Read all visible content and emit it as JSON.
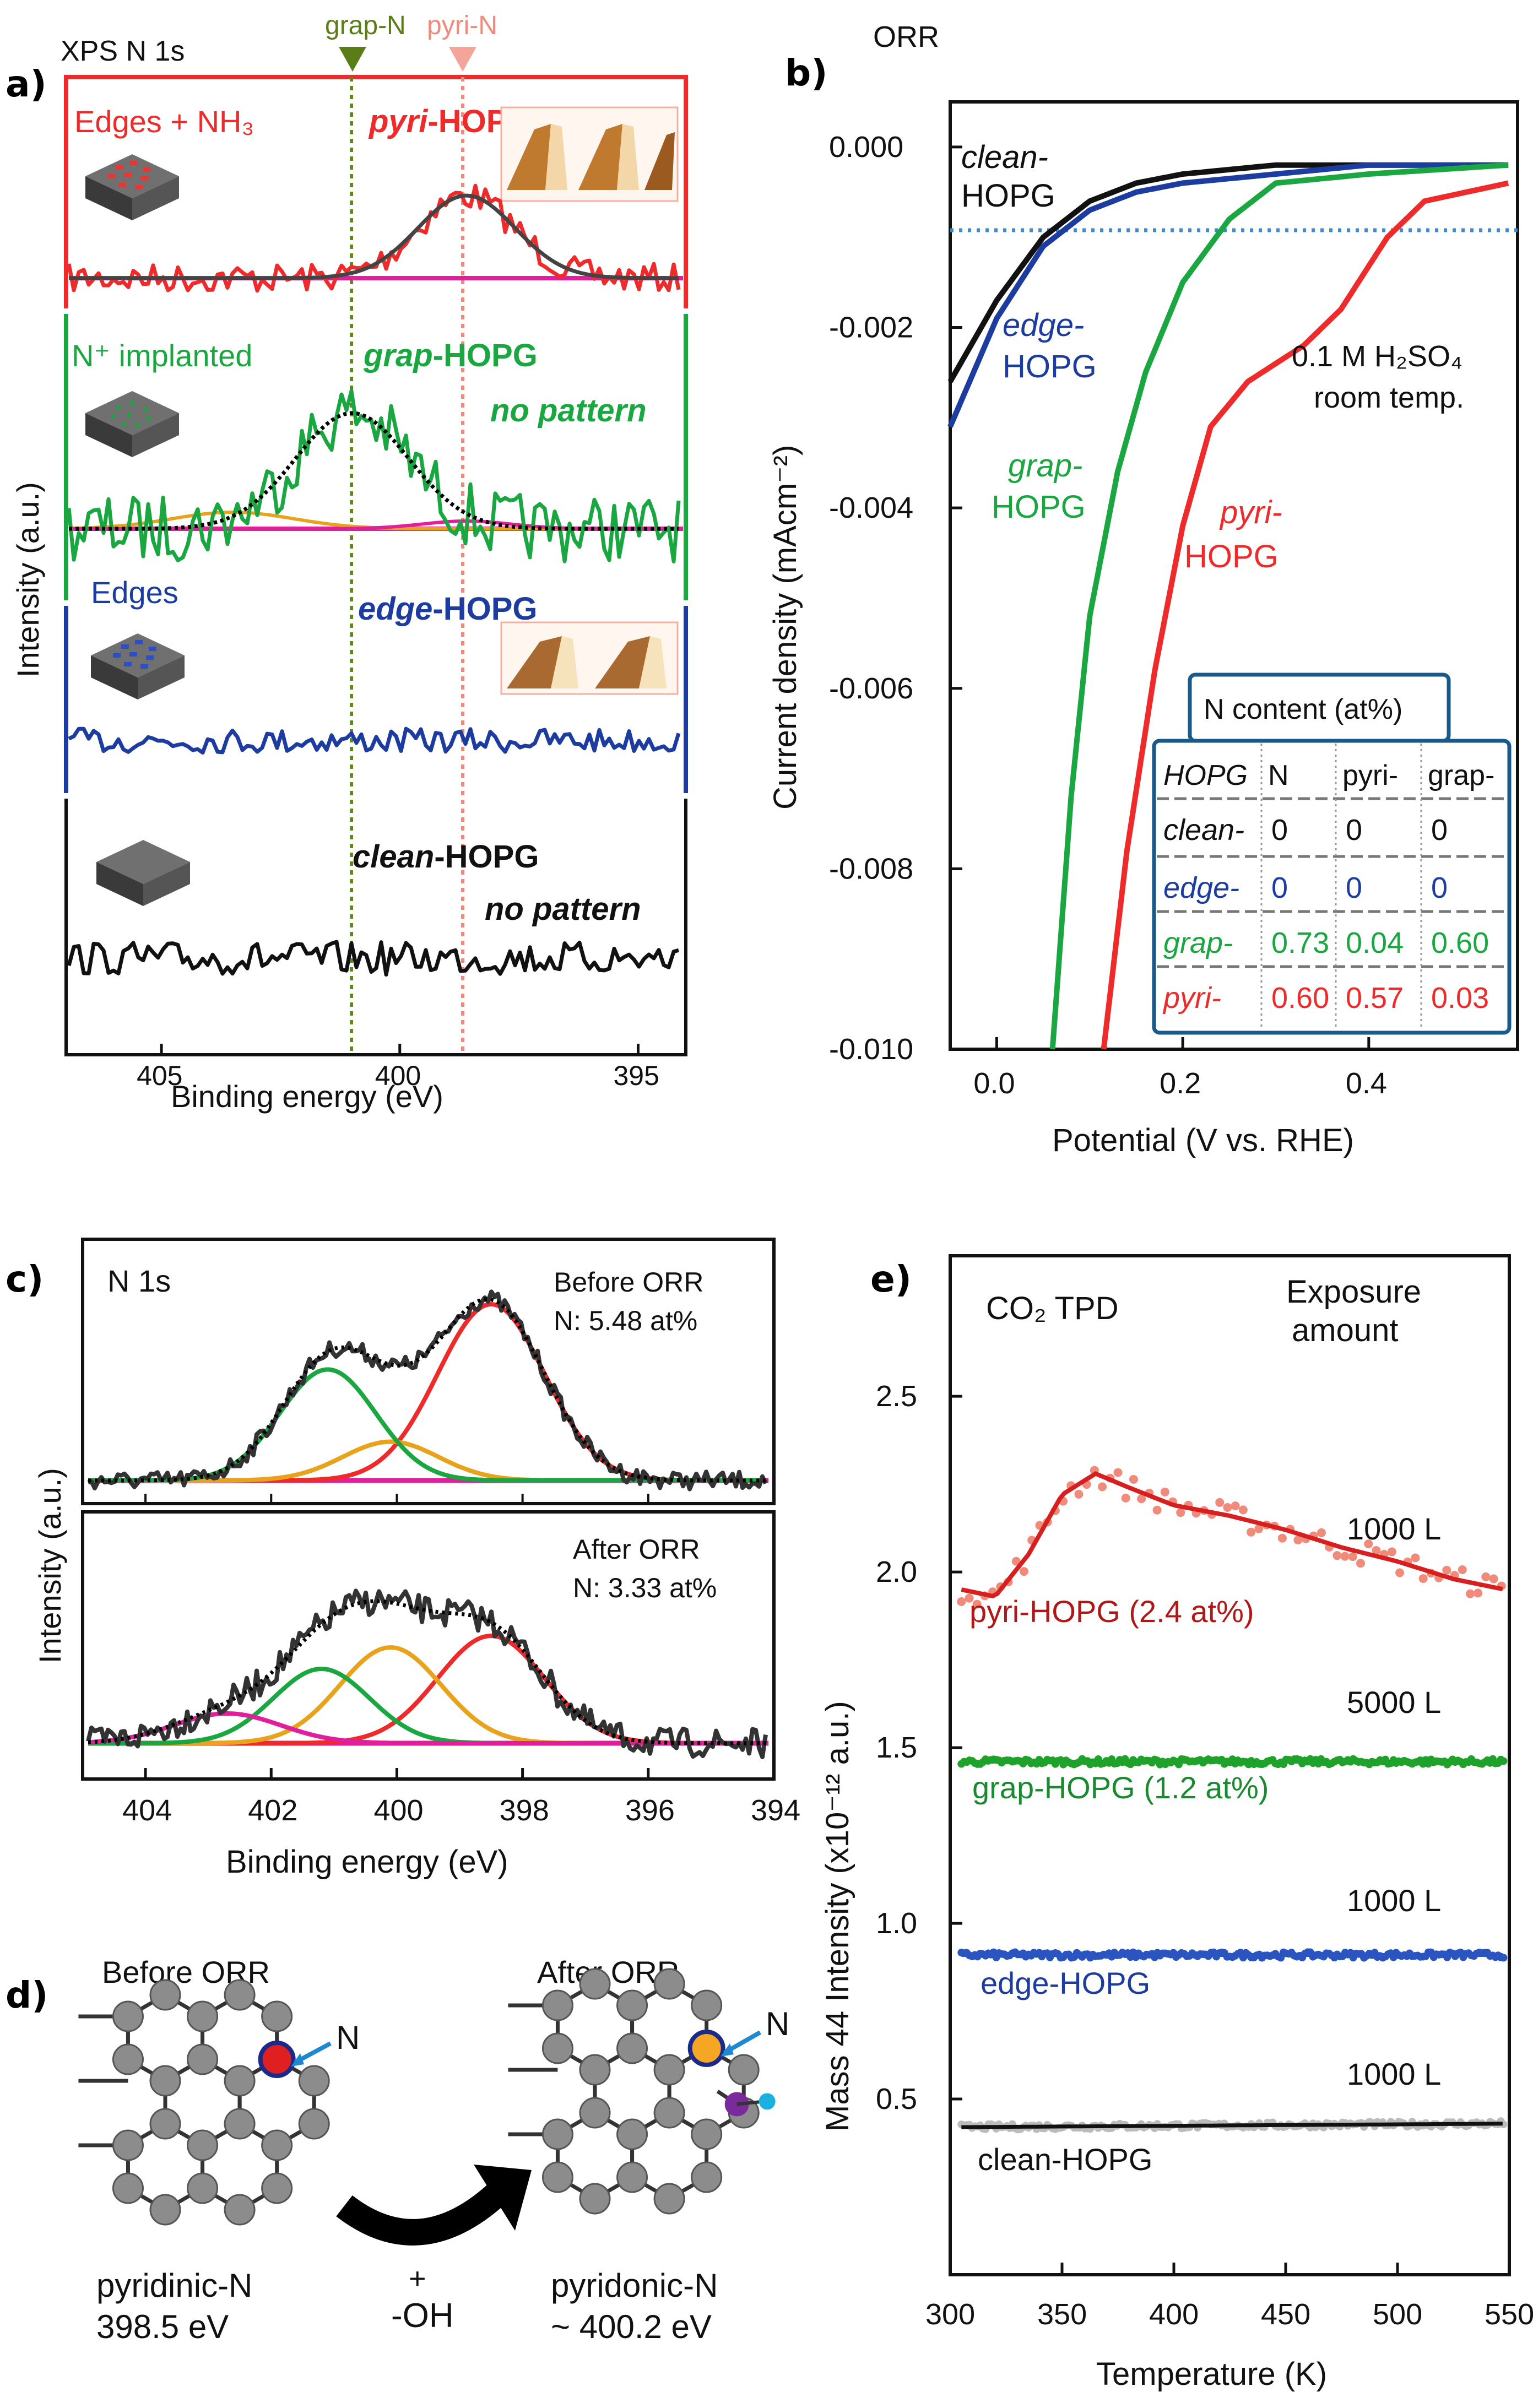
{
  "panels": {
    "a": "a)",
    "b": "b)",
    "c": "c)",
    "d": "d)",
    "e": "e)"
  },
  "colors": {
    "red": "#ee2a2a",
    "green": "#1aa640",
    "blue": "#1c3ca0",
    "black": "#111111",
    "magenta": "#e0209a",
    "orange": "#e9a21b",
    "darkgreen": "#5b7d18",
    "salmon": "#f08a7a"
  },
  "panel_a": {
    "header": "XPS N 1s",
    "marker_graph": "grap-N",
    "marker_pyri": "pyri-N",
    "ylabel": "Intensity (a.u.)",
    "xlabel": "Binding energy (eV)",
    "xticks": [
      "405",
      "400",
      "395"
    ],
    "tracks": [
      {
        "left": "Edges + NH₃",
        "mid_prefix": "pyri",
        "mid_suffix": "-HOPG",
        "note": ""
      },
      {
        "left": "N⁺ implanted",
        "mid_prefix": "grap",
        "mid_suffix": "-HOPG",
        "note": "no pattern"
      },
      {
        "left": "Edges",
        "mid_prefix": "edge",
        "mid_suffix": "-HOPG",
        "note": ""
      },
      {
        "left": "",
        "mid_prefix": "clean",
        "mid_suffix": "-HOPG",
        "note": "no pattern"
      }
    ]
  },
  "panel_b": {
    "header": "ORR",
    "ylabel": "Current density (mAcm⁻²)",
    "xlabel": "Potential (V vs. RHE)",
    "conditions_line1": "0.1 M H₂SO₄",
    "conditions_line2": "room temp.",
    "curve_labels": [
      {
        "l1": "clean-",
        "l2": "HOPG"
      },
      {
        "l1": "edge-",
        "l2": "HOPG"
      },
      {
        "l1": "grap-",
        "l2": "HOPG"
      },
      {
        "l1": "pyri-",
        "l2": "HOPG"
      }
    ],
    "table": {
      "title": "N content (at%)",
      "headers": [
        "HOPG",
        "N",
        "pyri-",
        "grap-"
      ],
      "rows": [
        [
          "clean-",
          "0",
          "0",
          "0"
        ],
        [
          "edge-",
          "0",
          "0",
          "0"
        ],
        [
          "grap-",
          "0.73",
          "0.04",
          "0.60"
        ],
        [
          "pyri-",
          "0.60",
          "0.57",
          "0.03"
        ]
      ]
    }
  },
  "panel_c": {
    "header": "N 1s",
    "ylabel": "Intensity (a.u.)",
    "xlabel": "Binding energy (eV)",
    "before_l1": "Before ORR",
    "before_l2": "N: 5.48 at%",
    "after_l1": "After ORR",
    "after_l2": "N: 3.33 at%"
  },
  "panel_d": {
    "before": "Before ORR",
    "after": "After ORR",
    "n_label": "N",
    "plus": "+",
    "oh": "-OH",
    "left_name": "pyridinic-N",
    "left_energy": "398.5 eV",
    "right_name": "pyridonic-N",
    "right_energy": "~ 400.2 eV"
  },
  "panel_e": {
    "header": "CO₂ TPD",
    "exposure_l1": "Exposure",
    "exposure_l2": "amount",
    "ylabel": "Mass 44 Intensity (x10⁻¹² a.u.)",
    "xlabel": "Temperature (K)",
    "series": [
      {
        "name": "pyri-HOPG (2.4 at%)",
        "exposure": "1000 L"
      },
      {
        "name": "grap-HOPG (1.2 at%)",
        "exposure": "5000 L"
      },
      {
        "name": "edge-HOPG",
        "exposure": "1000 L"
      },
      {
        "name": "clean-HOPG",
        "exposure": "1000 L"
      }
    ]
  },
  "chart_data": [
    {
      "type": "line",
      "panel": "a",
      "title": "XPS N 1s",
      "xlabel": "Binding energy (eV)",
      "ylabel": "Intensity (a.u.)",
      "xlim": [
        407,
        394
      ],
      "xticks": [
        405,
        400,
        395
      ],
      "reference_lines": [
        {
          "name": "grap-N",
          "x": 401.1
        },
        {
          "name": "pyri-N",
          "x": 398.6
        }
      ],
      "series": [
        {
          "name": "pyri-HOPG",
          "peak_center": 398.6,
          "peak_fwhm": 2.4
        },
        {
          "name": "grap-HOPG",
          "peak_center": 401.0,
          "peak_fwhm": 2.8
        },
        {
          "name": "edge-HOPG"
        },
        {
          "name": "clean-HOPG"
        }
      ]
    },
    {
      "type": "line",
      "panel": "b",
      "title": "ORR",
      "xlabel": "Potential (V vs. RHE)",
      "ylabel": "Current density (mAcm-2)",
      "xlim": [
        -0.05,
        0.56
      ],
      "ylim": [
        -0.01,
        0.0005
      ],
      "xticks": [
        0.0,
        0.2,
        0.4
      ],
      "yticks": [
        0.0,
        -0.002,
        -0.004,
        -0.006,
        -0.008,
        -0.01
      ],
      "reference_lines": [
        {
          "y": -0.001
        }
      ],
      "series": [
        {
          "name": "clean-HOPG",
          "x": [
            -0.05,
            0.0,
            0.05,
            0.1,
            0.15,
            0.2,
            0.3,
            0.4,
            0.55
          ],
          "y": [
            -0.0026,
            -0.0017,
            -0.001,
            -0.0006,
            -0.0004,
            -0.0003,
            -0.0002,
            -0.0002,
            -0.0002
          ]
        },
        {
          "name": "edge-HOPG",
          "x": [
            -0.05,
            0.0,
            0.05,
            0.1,
            0.15,
            0.2,
            0.3,
            0.4,
            0.55
          ],
          "y": [
            -0.0031,
            -0.0019,
            -0.0011,
            -0.0007,
            -0.0005,
            -0.0004,
            -0.0003,
            -0.0002,
            -0.0002
          ]
        },
        {
          "name": "grap-HOPG",
          "x": [
            0.06,
            0.08,
            0.1,
            0.13,
            0.16,
            0.2,
            0.25,
            0.3,
            0.4,
            0.55
          ],
          "y": [
            -0.01,
            -0.0072,
            -0.0052,
            -0.0036,
            -0.0025,
            -0.0015,
            -0.0008,
            -0.0004,
            -0.0003,
            -0.0002
          ]
        },
        {
          "name": "pyri-HOPG",
          "x": [
            0.115,
            0.14,
            0.17,
            0.2,
            0.23,
            0.27,
            0.3,
            0.33,
            0.37,
            0.42,
            0.46,
            0.55
          ],
          "y": [
            -0.01,
            -0.0078,
            -0.0058,
            -0.0042,
            -0.0031,
            -0.0026,
            -0.0024,
            -0.0022,
            -0.0018,
            -0.001,
            -0.0006,
            -0.0004
          ]
        }
      ]
    },
    {
      "type": "line",
      "panel": "c",
      "xlabel": "Binding energy (eV)",
      "ylabel": "Intensity (a.u.)",
      "xlim": [
        405,
        394
      ],
      "xticks": [
        404,
        402,
        400,
        398,
        396,
        394
      ],
      "series": [
        {
          "name": "Before ORR",
          "components": [
            {
              "center": 398.5,
              "height": 1.0,
              "fwhm": 2.0
            },
            {
              "center": 400.1,
              "height": 0.22,
              "fwhm": 1.8
            },
            {
              "center": 401.1,
              "height": 0.63,
              "fwhm": 1.8
            }
          ]
        },
        {
          "name": "After ORR",
          "components": [
            {
              "center": 398.5,
              "height": 0.65,
              "fwhm": 2.0
            },
            {
              "center": 400.1,
              "height": 0.58,
              "fwhm": 1.9
            },
            {
              "center": 401.2,
              "height": 0.45,
              "fwhm": 1.8
            },
            {
              "center": 402.7,
              "height": 0.18,
              "fwhm": 2.0
            }
          ]
        }
      ]
    },
    {
      "type": "scatter",
      "panel": "e",
      "title": "CO2 TPD",
      "xlabel": "Temperature (K)",
      "ylabel": "Mass 44 Intensity (x10-12 a.u.)",
      "xlim": [
        300,
        550
      ],
      "ylim": [
        0.0,
        2.9
      ],
      "xticks": [
        300,
        350,
        400,
        450,
        500,
        550
      ],
      "yticks": [
        0.5,
        1.0,
        1.5,
        2.0,
        2.5
      ],
      "series": [
        {
          "name": "pyri-HOPG (2.4 at%)",
          "x": [
            305,
            320,
            335,
            350,
            365,
            380,
            400,
            425,
            450,
            475,
            500,
            525,
            548
          ],
          "y": [
            1.95,
            1.93,
            2.05,
            2.22,
            2.28,
            2.24,
            2.19,
            2.16,
            2.12,
            2.07,
            2.03,
            1.98,
            1.95
          ]
        },
        {
          "name": "grap-HOPG (1.2 at%)",
          "x": [
            305,
            550
          ],
          "y": [
            1.46,
            1.46
          ]
        },
        {
          "name": "edge-HOPG",
          "x": [
            305,
            550
          ],
          "y": [
            0.91,
            0.91
          ]
        },
        {
          "name": "clean-HOPG",
          "x": [
            305,
            550
          ],
          "y": [
            0.42,
            0.43
          ]
        }
      ]
    }
  ]
}
